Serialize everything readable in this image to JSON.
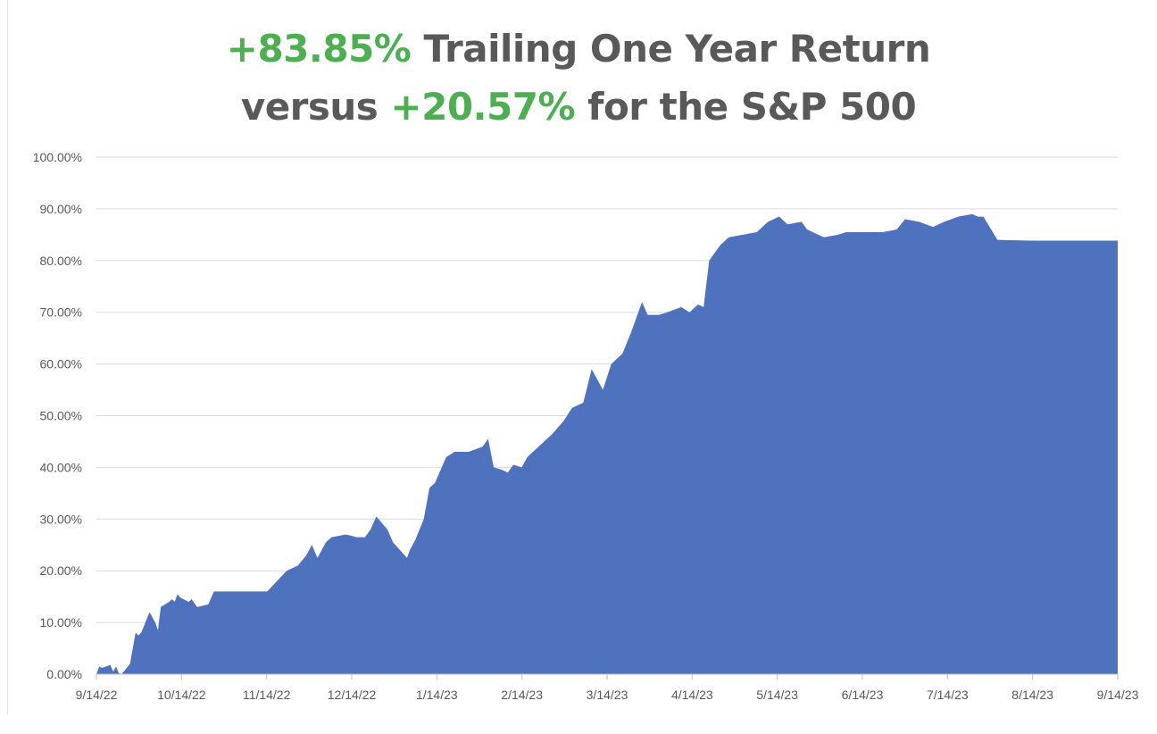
{
  "title": {
    "line1_highlight": "+83.85%",
    "line1_rest": " Trailing One Year Return",
    "line2_start": "versus ",
    "line2_highlight": "+20.57%",
    "line2_rest": " for the S&P 500"
  },
  "colors": {
    "highlight": "#4CAF50",
    "title_text": "#595959",
    "area_fill": "#4F72BE",
    "grid": "#d9d9d9"
  },
  "chart_data": {
    "type": "area",
    "x_label_format": "M/D/YY",
    "xlim": [
      "2022-09-14",
      "2023-09-14"
    ],
    "ylim": [
      0,
      100
    ],
    "grid": true,
    "y_ticks": [
      "0.00%",
      "10.00%",
      "20.00%",
      "30.00%",
      "40.00%",
      "50.00%",
      "60.00%",
      "70.00%",
      "80.00%",
      "90.00%",
      "100.00%"
    ],
    "x_ticks": [
      "9/14/22",
      "10/14/22",
      "11/14/22",
      "12/14/22",
      "1/14/23",
      "2/14/23",
      "3/14/23",
      "4/14/23",
      "5/14/23",
      "6/14/23",
      "7/14/23",
      "8/14/23",
      "9/14/23"
    ],
    "series": [
      {
        "x": [
          "2022-09-14",
          "2022-09-15",
          "2022-09-16",
          "2022-09-19",
          "2022-09-20",
          "2022-09-21",
          "2022-09-22",
          "2022-09-23",
          "2022-09-26",
          "2022-09-27",
          "2022-09-28",
          "2022-09-29",
          "2022-09-30",
          "2022-10-03",
          "2022-10-04",
          "2022-10-05",
          "2022-10-06",
          "2022-10-07",
          "2022-10-10",
          "2022-10-11",
          "2022-10-12",
          "2022-10-13",
          "2022-10-14",
          "2022-10-17",
          "2022-10-18",
          "2022-10-20",
          "2022-10-24",
          "2022-10-26",
          "2022-10-28",
          "2022-10-31",
          "2022-11-02",
          "2022-11-04",
          "2022-11-07",
          "2022-11-14",
          "2022-11-21",
          "2022-11-25",
          "2022-11-28",
          "2022-11-30",
          "2022-12-02",
          "2022-12-05",
          "2022-12-07",
          "2022-12-12",
          "2022-12-14",
          "2022-12-16",
          "2022-12-19",
          "2022-12-21",
          "2022-12-23",
          "2022-12-27",
          "2022-12-29",
          "2023-01-03",
          "2023-01-04",
          "2023-01-06",
          "2023-01-09",
          "2023-01-11",
          "2023-01-13",
          "2023-01-17",
          "2023-01-20",
          "2023-01-25",
          "2023-01-30",
          "2023-02-01",
          "2023-02-03",
          "2023-02-06",
          "2023-02-08",
          "2023-02-10",
          "2023-02-13",
          "2023-02-15",
          "2023-02-17",
          "2023-02-21",
          "2023-02-24",
          "2023-02-28",
          "2023-03-03",
          "2023-03-07",
          "2023-03-10",
          "2023-03-14",
          "2023-03-17",
          "2023-03-21",
          "2023-03-24",
          "2023-03-28",
          "2023-03-30",
          "2023-04-03",
          "2023-04-06",
          "2023-04-11",
          "2023-04-14",
          "2023-04-17",
          "2023-04-19",
          "2023-04-21",
          "2023-04-25",
          "2023-04-28",
          "2023-05-03",
          "2023-05-08",
          "2023-05-12",
          "2023-05-16",
          "2023-05-19",
          "2023-05-24",
          "2023-05-26",
          "2023-06-01",
          "2023-06-06",
          "2023-06-09",
          "2023-06-14",
          "2023-06-19",
          "2023-06-22",
          "2023-06-27",
          "2023-06-30",
          "2023-07-05",
          "2023-07-10",
          "2023-07-14",
          "2023-07-19",
          "2023-07-24",
          "2023-07-26",
          "2023-07-28",
          "2023-08-02",
          "2023-08-14",
          "2023-08-28",
          "2023-09-14"
        ],
        "y": [
          0.0,
          1.5,
          1.2,
          1.8,
          0.5,
          1.5,
          0.2,
          0.0,
          2.0,
          5.0,
          8.0,
          7.5,
          8.0,
          12.0,
          11.0,
          10.0,
          8.5,
          13.0,
          14.0,
          14.5,
          14.0,
          15.5,
          14.8,
          14.0,
          14.5,
          13.0,
          13.5,
          16.0,
          16.0,
          16.0,
          16.0,
          16.0,
          16.0,
          16.0,
          20.0,
          21.0,
          23.0,
          25.0,
          22.5,
          25.5,
          26.5,
          27.0,
          26.8,
          26.5,
          26.5,
          28.0,
          30.5,
          28.0,
          25.5,
          22.5,
          24.0,
          26.0,
          30.0,
          36.0,
          37.0,
          42.0,
          43.0,
          43.0,
          44.0,
          45.5,
          40.0,
          39.5,
          39.0,
          40.5,
          40.0,
          42.0,
          43.0,
          45.0,
          46.5,
          49.0,
          51.5,
          52.5,
          59.0,
          55.0,
          60.0,
          62.0,
          66.0,
          72.0,
          69.5,
          69.5,
          70.0,
          71.0,
          70.0,
          71.5,
          71.0,
          80.0,
          83.0,
          84.5,
          85.0,
          85.5,
          87.5,
          88.5,
          87.0,
          87.5,
          86.0,
          84.5,
          85.0,
          85.5,
          85.5,
          85.5,
          85.5,
          86.0,
          88.0,
          87.5,
          86.5,
          87.5,
          88.5,
          89.0,
          88.5,
          88.5,
          84.0,
          83.85,
          83.85,
          83.85
        ]
      }
    ]
  }
}
